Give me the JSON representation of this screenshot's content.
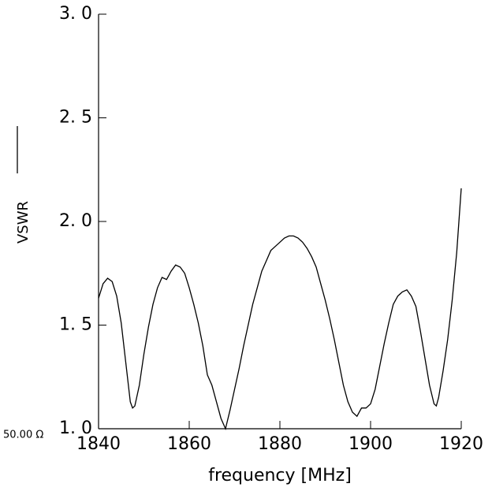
{
  "chart_data": {
    "type": "line",
    "xlabel": "frequency [MHz]",
    "annotation": "50.00 Ω",
    "x": [
      1840,
      1841,
      1842,
      1843,
      1844,
      1845,
      1846,
      1847,
      1847.5,
      1848,
      1849,
      1850,
      1851,
      1852,
      1853,
      1854,
      1855,
      1855.5,
      1856,
      1857,
      1858,
      1859,
      1860,
      1861,
      1862,
      1863,
      1864,
      1865,
      1866,
      1867,
      1868,
      1869,
      1870,
      1871,
      1872,
      1873,
      1874,
      1875,
      1876,
      1877,
      1878,
      1879,
      1880,
      1881,
      1882,
      1883,
      1884,
      1885,
      1886,
      1887,
      1888,
      1889,
      1890,
      1891,
      1892,
      1893,
      1894,
      1895,
      1896,
      1897,
      1898,
      1899,
      1900,
      1901,
      1902,
      1903,
      1904,
      1905,
      1906,
      1907,
      1908,
      1909,
      1910,
      1911,
      1912,
      1913,
      1914,
      1914.5,
      1915,
      1916,
      1917,
      1918,
      1919,
      1920
    ],
    "series": [
      {
        "name": "VSWR",
        "color": "#000000",
        "values": [
          1.63,
          1.7,
          1.726,
          1.71,
          1.64,
          1.51,
          1.32,
          1.13,
          1.1,
          1.11,
          1.21,
          1.36,
          1.49,
          1.6,
          1.68,
          1.73,
          1.72,
          1.74,
          1.76,
          1.79,
          1.78,
          1.75,
          1.68,
          1.6,
          1.51,
          1.4,
          1.26,
          1.21,
          1.13,
          1.05,
          1.0,
          1.09,
          1.19,
          1.29,
          1.4,
          1.5,
          1.6,
          1.68,
          1.76,
          1.81,
          1.86,
          1.88,
          1.9,
          1.92,
          1.93,
          1.93,
          1.92,
          1.9,
          1.87,
          1.83,
          1.78,
          1.7,
          1.62,
          1.53,
          1.43,
          1.32,
          1.21,
          1.13,
          1.08,
          1.06,
          1.1,
          1.1,
          1.12,
          1.19,
          1.3,
          1.41,
          1.51,
          1.6,
          1.64,
          1.66,
          1.67,
          1.64,
          1.59,
          1.47,
          1.34,
          1.21,
          1.12,
          1.11,
          1.15,
          1.28,
          1.43,
          1.62,
          1.85,
          2.16
        ]
      }
    ],
    "xlim": [
      1840,
      1920
    ],
    "xticks": [
      1840,
      1860,
      1880,
      1900,
      1920
    ],
    "ylim": [
      1.0,
      3.0
    ],
    "yticks": [
      {
        "value": 1.0,
        "label": "1. 0"
      },
      {
        "value": 1.5,
        "label": "1. 5"
      },
      {
        "value": 2.0,
        "label": "2. 0"
      },
      {
        "value": 2.5,
        "label": "2. 5"
      },
      {
        "value": 3.0,
        "label": "3. 0"
      }
    ]
  }
}
